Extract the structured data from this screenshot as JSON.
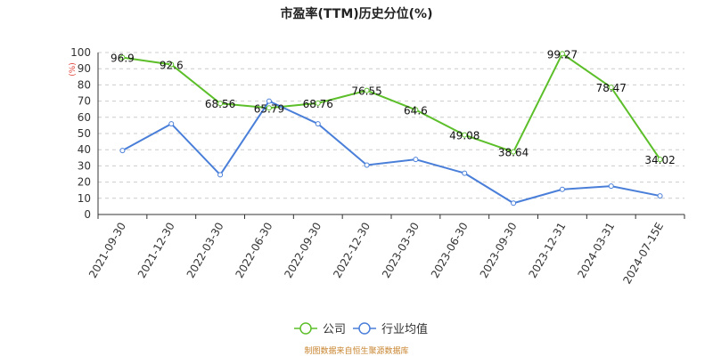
{
  "chart_data": {
    "type": "line",
    "title": "市盈率(TTM)历史分位(%)",
    "ylabel": "(%)",
    "ylim": [
      0,
      100
    ],
    "yticks": [
      0,
      10,
      20,
      30,
      40,
      50,
      60,
      70,
      80,
      90,
      100
    ],
    "grid": "horizontal-dashed",
    "legend_position": "bottom-center",
    "categories": [
      "2021-09-30",
      "2021-12-30",
      "2022-03-30",
      "2022-06-30",
      "2022-09-30",
      "2022-12-30",
      "2023-03-30",
      "2023-06-30",
      "2023-09-30",
      "2023-12-31",
      "2024-03-31",
      "2024-07-15E"
    ],
    "series": [
      {
        "name": "公司",
        "color": "#5cbf2a",
        "values": [
          96.9,
          92.6,
          68.56,
          65.79,
          68.76,
          76.55,
          64.6,
          49.08,
          38.64,
          99.27,
          78.47,
          34.02
        ],
        "labels": [
          "96.9",
          "92.6",
          "68.56",
          "65.79",
          "68.76",
          "76.55",
          "64.6",
          "49.08",
          "38.64",
          "99.27",
          "78.47",
          "34.02"
        ]
      },
      {
        "name": "行业均值",
        "color": "#4a7fd9",
        "values": [
          39.5,
          56,
          24.5,
          70,
          56,
          30.5,
          34,
          25.5,
          7,
          15.5,
          17.5,
          11.5
        ]
      }
    ],
    "source": "制图数据来自恒生聚源数据库"
  }
}
